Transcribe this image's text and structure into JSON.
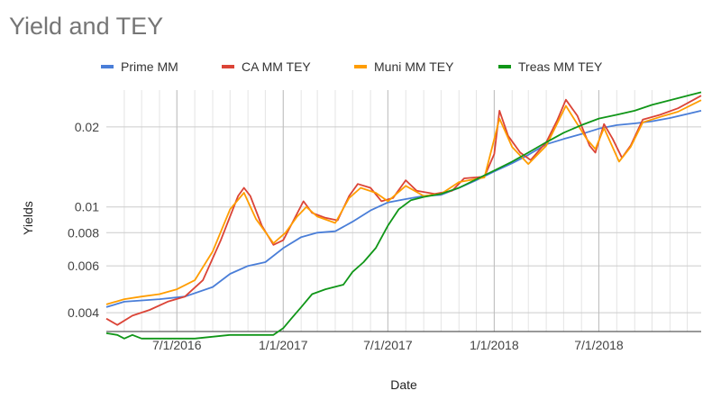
{
  "chart_data": {
    "type": "line",
    "title": "Yield and TEY",
    "xlabel": "Date",
    "ylabel": "Yields",
    "y_scale": "log",
    "ylim": [
      0.0034,
      0.0275
    ],
    "xlim": [
      "2016-03-01",
      "2018-12-25"
    ],
    "grid": true,
    "legend_position": "top",
    "x_ticks": [
      {
        "date": "2016-07-01",
        "label": "7/1/2016"
      },
      {
        "date": "2017-01-01",
        "label": "1/1/2017"
      },
      {
        "date": "2017-07-01",
        "label": "7/1/2017"
      },
      {
        "date": "2018-01-01",
        "label": "1/1/2018"
      },
      {
        "date": "2018-07-01",
        "label": "7/1/2018"
      }
    ],
    "y_ticks": [
      {
        "value": 0.004,
        "label": "0.004"
      },
      {
        "value": 0.006,
        "label": "0.006"
      },
      {
        "value": 0.008,
        "label": "0.008"
      },
      {
        "value": 0.01,
        "label": "0.01"
      },
      {
        "value": 0.02,
        "label": "0.02"
      }
    ],
    "series": [
      {
        "name": "Prime MM",
        "color": "#4a7ed8",
        "points": [
          [
            "2016-03-01",
            0.0042
          ],
          [
            "2016-04-01",
            0.0044
          ],
          [
            "2016-06-01",
            0.0045
          ],
          [
            "2016-07-15",
            0.0046
          ],
          [
            "2016-09-01",
            0.005
          ],
          [
            "2016-10-01",
            0.0056
          ],
          [
            "2016-11-01",
            0.006
          ],
          [
            "2016-12-01",
            0.0062
          ],
          [
            "2017-01-01",
            0.007
          ],
          [
            "2017-02-01",
            0.0077
          ],
          [
            "2017-03-01",
            0.008
          ],
          [
            "2017-04-01",
            0.0081
          ],
          [
            "2017-05-01",
            0.0088
          ],
          [
            "2017-06-01",
            0.0097
          ],
          [
            "2017-07-01",
            0.0104
          ],
          [
            "2017-08-01",
            0.0107
          ],
          [
            "2017-09-01",
            0.011
          ],
          [
            "2017-10-01",
            0.0111
          ],
          [
            "2017-11-01",
            0.0118
          ],
          [
            "2017-12-01",
            0.0126
          ],
          [
            "2018-01-01",
            0.0136
          ],
          [
            "2018-02-01",
            0.0146
          ],
          [
            "2018-03-01",
            0.0157
          ],
          [
            "2018-04-01",
            0.0172
          ],
          [
            "2018-05-01",
            0.018
          ],
          [
            "2018-06-01",
            0.0188
          ],
          [
            "2018-07-01",
            0.0197
          ],
          [
            "2018-08-01",
            0.0203
          ],
          [
            "2018-09-01",
            0.0206
          ],
          [
            "2018-10-01",
            0.021
          ],
          [
            "2018-11-01",
            0.0216
          ],
          [
            "2018-12-25",
            0.023
          ]
        ]
      },
      {
        "name": "CA MM TEY",
        "color": "#db4437",
        "points": [
          [
            "2016-03-01",
            0.0038
          ],
          [
            "2016-03-20",
            0.0036
          ],
          [
            "2016-04-15",
            0.0039
          ],
          [
            "2016-05-15",
            0.0041
          ],
          [
            "2016-06-15",
            0.0044
          ],
          [
            "2016-07-15",
            0.0046
          ],
          [
            "2016-08-15",
            0.0053
          ],
          [
            "2016-09-15",
            0.0075
          ],
          [
            "2016-10-15",
            0.011
          ],
          [
            "2016-10-25",
            0.0118
          ],
          [
            "2016-11-05",
            0.011
          ],
          [
            "2016-11-25",
            0.0085
          ],
          [
            "2016-12-15",
            0.0072
          ],
          [
            "2017-01-01",
            0.0075
          ],
          [
            "2017-01-20",
            0.009
          ],
          [
            "2017-02-05",
            0.0105
          ],
          [
            "2017-02-20",
            0.0095
          ],
          [
            "2017-03-15",
            0.0091
          ],
          [
            "2017-04-05",
            0.0089
          ],
          [
            "2017-04-25",
            0.011
          ],
          [
            "2017-05-10",
            0.0122
          ],
          [
            "2017-06-01",
            0.0118
          ],
          [
            "2017-06-20",
            0.0105
          ],
          [
            "2017-07-10",
            0.0108
          ],
          [
            "2017-08-01",
            0.0126
          ],
          [
            "2017-08-20",
            0.0115
          ],
          [
            "2017-09-20",
            0.0112
          ],
          [
            "2017-10-20",
            0.0115
          ],
          [
            "2017-11-10",
            0.0128
          ],
          [
            "2017-12-15",
            0.013
          ],
          [
            "2018-01-01",
            0.0158
          ],
          [
            "2018-01-10",
            0.023
          ],
          [
            "2018-01-25",
            0.0185
          ],
          [
            "2018-02-15",
            0.016
          ],
          [
            "2018-03-05",
            0.015
          ],
          [
            "2018-04-01",
            0.0175
          ],
          [
            "2018-04-20",
            0.0212
          ],
          [
            "2018-05-05",
            0.0253
          ],
          [
            "2018-05-25",
            0.022
          ],
          [
            "2018-06-15",
            0.017
          ],
          [
            "2018-06-25",
            0.016
          ],
          [
            "2018-07-10",
            0.0205
          ],
          [
            "2018-07-25",
            0.018
          ],
          [
            "2018-08-10",
            0.0153
          ],
          [
            "2018-08-25",
            0.017
          ],
          [
            "2018-09-15",
            0.0213
          ],
          [
            "2018-10-15",
            0.0222
          ],
          [
            "2018-11-15",
            0.0235
          ],
          [
            "2018-12-25",
            0.0262
          ]
        ]
      },
      {
        "name": "Muni MM TEY",
        "color": "#ff9d00",
        "points": [
          [
            "2016-03-01",
            0.0043
          ],
          [
            "2016-04-01",
            0.0045
          ],
          [
            "2016-05-01",
            0.0046
          ],
          [
            "2016-06-01",
            0.0047
          ],
          [
            "2016-07-01",
            0.0049
          ],
          [
            "2016-08-01",
            0.0053
          ],
          [
            "2016-09-01",
            0.0068
          ],
          [
            "2016-10-01",
            0.0098
          ],
          [
            "2016-10-25",
            0.0113
          ],
          [
            "2016-11-15",
            0.009
          ],
          [
            "2016-12-15",
            0.0073
          ],
          [
            "2017-01-05",
            0.008
          ],
          [
            "2017-01-25",
            0.0092
          ],
          [
            "2017-02-10",
            0.01
          ],
          [
            "2017-03-01",
            0.0092
          ],
          [
            "2017-04-01",
            0.0087
          ],
          [
            "2017-04-25",
            0.0108
          ],
          [
            "2017-05-15",
            0.0118
          ],
          [
            "2017-06-10",
            0.0113
          ],
          [
            "2017-07-01",
            0.0105
          ],
          [
            "2017-08-01",
            0.012
          ],
          [
            "2017-09-01",
            0.011
          ],
          [
            "2017-10-01",
            0.0112
          ],
          [
            "2017-11-01",
            0.0124
          ],
          [
            "2017-12-15",
            0.0129
          ],
          [
            "2018-01-10",
            0.0215
          ],
          [
            "2018-02-01",
            0.0168
          ],
          [
            "2018-03-01",
            0.0145
          ],
          [
            "2018-04-01",
            0.017
          ],
          [
            "2018-05-05",
            0.024
          ],
          [
            "2018-06-10",
            0.018
          ],
          [
            "2018-06-25",
            0.0165
          ],
          [
            "2018-07-10",
            0.0198
          ],
          [
            "2018-08-05",
            0.0148
          ],
          [
            "2018-08-25",
            0.0168
          ],
          [
            "2018-09-15",
            0.0208
          ],
          [
            "2018-10-15",
            0.0218
          ],
          [
            "2018-11-15",
            0.0228
          ],
          [
            "2018-12-25",
            0.0252
          ]
        ]
      },
      {
        "name": "Treas MM TEY",
        "color": "#109618",
        "points": [
          [
            "2016-03-01",
            0.00335
          ],
          [
            "2016-03-20",
            0.0033
          ],
          [
            "2016-04-01",
            0.0032
          ],
          [
            "2016-04-15",
            0.0033
          ],
          [
            "2016-05-01",
            0.0032
          ],
          [
            "2016-06-01",
            0.0032
          ],
          [
            "2016-08-01",
            0.0032
          ],
          [
            "2016-10-01",
            0.0033
          ],
          [
            "2016-12-15",
            0.0033
          ],
          [
            "2017-01-01",
            0.0035
          ],
          [
            "2017-01-15",
            0.0038
          ],
          [
            "2017-02-01",
            0.0042
          ],
          [
            "2017-02-20",
            0.0047
          ],
          [
            "2017-03-15",
            0.0049
          ],
          [
            "2017-04-15",
            0.0051
          ],
          [
            "2017-05-01",
            0.0057
          ],
          [
            "2017-05-20",
            0.0062
          ],
          [
            "2017-06-10",
            0.007
          ],
          [
            "2017-07-01",
            0.0085
          ],
          [
            "2017-07-20",
            0.0098
          ],
          [
            "2017-08-10",
            0.0106
          ],
          [
            "2017-09-01",
            0.0109
          ],
          [
            "2017-10-01",
            0.0112
          ],
          [
            "2017-11-01",
            0.0118
          ],
          [
            "2017-12-01",
            0.0127
          ],
          [
            "2018-01-01",
            0.0137
          ],
          [
            "2018-02-01",
            0.0148
          ],
          [
            "2018-03-01",
            0.016
          ],
          [
            "2018-04-01",
            0.0175
          ],
          [
            "2018-05-01",
            0.019
          ],
          [
            "2018-06-01",
            0.0203
          ],
          [
            "2018-07-01",
            0.0215
          ],
          [
            "2018-08-01",
            0.0222
          ],
          [
            "2018-09-01",
            0.023
          ],
          [
            "2018-10-01",
            0.0242
          ],
          [
            "2018-11-01",
            0.0252
          ],
          [
            "2018-12-25",
            0.027
          ]
        ]
      }
    ]
  }
}
